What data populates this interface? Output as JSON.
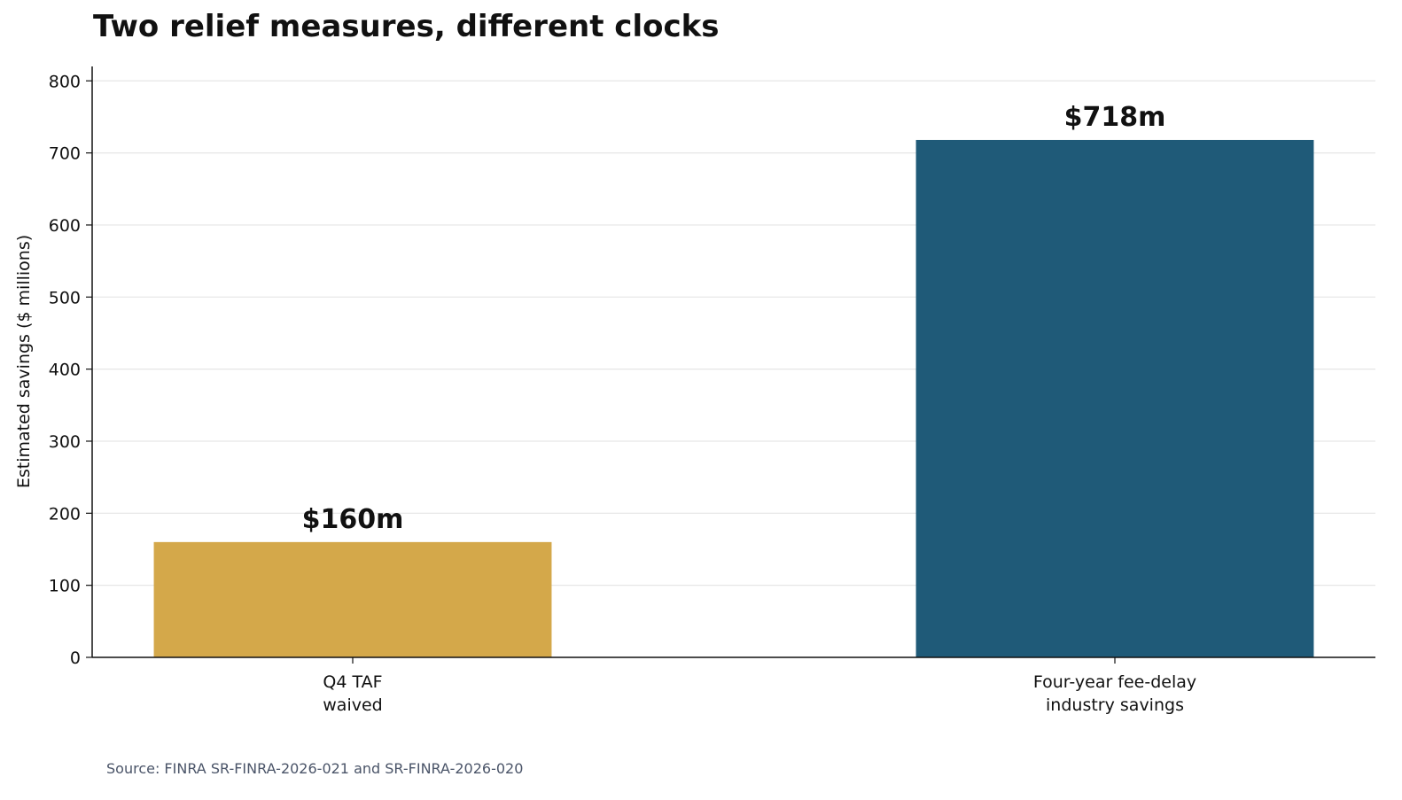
{
  "chart_data": {
    "type": "bar",
    "title": "Two relief measures, different clocks",
    "ylabel": "Estimated savings ($ millions)",
    "xlabel": "",
    "ylim": [
      0,
      820
    ],
    "yticks": [
      0,
      100,
      200,
      300,
      400,
      500,
      600,
      700,
      800
    ],
    "grid": true,
    "categories": [
      [
        "Q4 TAF",
        "waived"
      ],
      [
        "Four-year fee-delay",
        "industry savings"
      ]
    ],
    "values": [
      160,
      718
    ],
    "data_labels": [
      "$160m",
      "$718m"
    ],
    "colors": [
      "#d4a84a",
      "#1f5a78"
    ],
    "source": "Source: FINRA SR-FINRA-2026-021 and SR-FINRA-2026-020"
  }
}
